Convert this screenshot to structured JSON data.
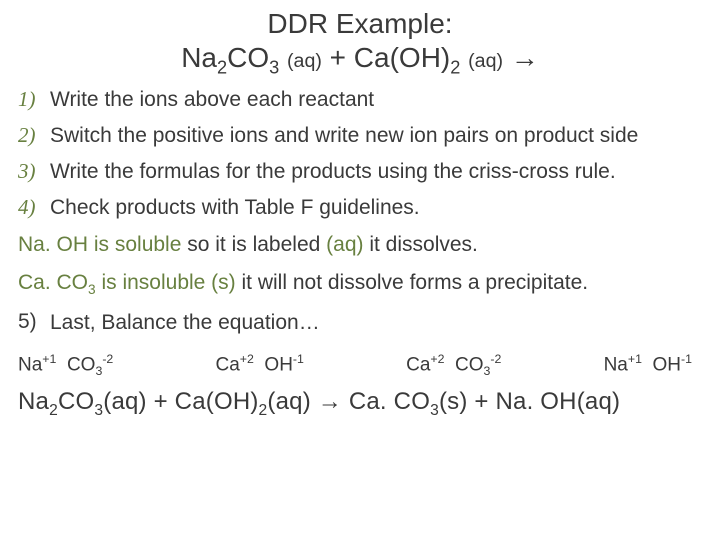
{
  "colors": {
    "text": "#3a3a3a",
    "accent": "#688040",
    "background": "#ffffff"
  },
  "typography": {
    "title_fontsize": 28,
    "body_fontsize": 21,
    "ions_fontsize": 19,
    "final_fontsize": 24,
    "number_font_family": "Georgia",
    "number_style": "italic"
  },
  "title": "DDR Example:",
  "equation": {
    "lhs1": "Na",
    "lhs1_sub": "2",
    "lhs1_f": "CO",
    "lhs1_sub2": "3",
    "state1": "(aq)",
    "plus": " + ",
    "lhs2": "Ca(OH)",
    "lhs2_sub": "2",
    "state2": "(aq)",
    "arrow": " →"
  },
  "steps": [
    {
      "n": "1)",
      "text": "Write the ions above each reactant"
    },
    {
      "n": "2)",
      "text": "Switch the positive ions and write new ion pairs on product side"
    },
    {
      "n": "3)",
      "text": "Write the formulas for the products using the criss-cross rule."
    },
    {
      "n": "4)",
      "text": "Check products with Table F guidelines."
    }
  ],
  "para1": {
    "a": "Na. OH is soluble ",
    "b": " so it is labeled ",
    "c": "(aq)",
    "d": " it dissolves."
  },
  "para2": {
    "a": "Ca. CO",
    "a_sub": "3",
    "b": " is insoluble (s)",
    "c": " it will not dissolve forms a precipitate."
  },
  "step5": {
    "n": "5)",
    "text": "Last, Balance the equation…"
  },
  "ions": [
    {
      "a": "Na",
      "a_sup": "+1",
      "b": "CO",
      "b_sub": "3",
      "b_sup": "-2"
    },
    {
      "a": "Ca",
      "a_sup": "+2",
      "b": "OH",
      "b_sup": "-1"
    },
    {
      "a": "Ca",
      "a_sup": "+2",
      "b": "CO",
      "b_sub": "3",
      "b_sup": "-2"
    },
    {
      "a": "Na",
      "a_sup": "+1",
      "b": "OH",
      "b_sup": "-1"
    }
  ],
  "final": {
    "t1": "Na",
    "s1": "2",
    "t2": "CO",
    "s2": "3",
    "t3": "(aq) + Ca(OH)",
    "s3": "2",
    "t4": "(aq) ",
    "arrow": "→",
    "t5": "  Ca. CO",
    "s5": "3",
    "t6": "(s) +  Na. OH(aq)"
  }
}
